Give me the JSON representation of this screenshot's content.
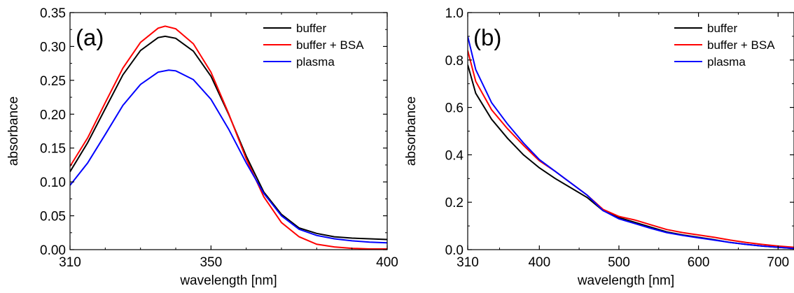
{
  "chart_data": [
    {
      "type": "line",
      "panel_label": "(a)",
      "xlabel": "wavelength [nm]",
      "ylabel": "absorbance",
      "xlim": [
        310,
        400
      ],
      "ylim": [
        0,
        0.35
      ],
      "x_ticks": [
        310,
        350,
        400
      ],
      "x_minor_ticks": [
        320,
        330,
        340,
        360,
        370,
        380,
        390
      ],
      "y_ticks": [
        0,
        0.05,
        0.1,
        0.15,
        0.2,
        0.25,
        0.3,
        0.35
      ],
      "x_tick_labels": [
        "310",
        "350",
        "400"
      ],
      "y_tick_labels": [
        "0.00",
        "0.05",
        "0.10",
        "0.15",
        "0.20",
        "0.25",
        "0.30",
        "0.35"
      ],
      "grid": false,
      "legend_position": "top-right",
      "series": [
        {
          "name": "buffer",
          "color": "#000000",
          "x": [
            310,
            315,
            320,
            325,
            330,
            335,
            337,
            340,
            345,
            350,
            355,
            360,
            365,
            370,
            375,
            380,
            385,
            390,
            395,
            400
          ],
          "y": [
            0.115,
            0.158,
            0.208,
            0.258,
            0.294,
            0.313,
            0.315,
            0.312,
            0.293,
            0.256,
            0.2,
            0.138,
            0.085,
            0.052,
            0.032,
            0.024,
            0.019,
            0.017,
            0.016,
            0.015
          ]
        },
        {
          "name": "buffer + BSA",
          "color": "#ff0000",
          "x": [
            310,
            315,
            320,
            325,
            330,
            335,
            337,
            340,
            345,
            350,
            355,
            360,
            365,
            370,
            375,
            380,
            385,
            390,
            395,
            400
          ],
          "y": [
            0.123,
            0.165,
            0.217,
            0.268,
            0.306,
            0.327,
            0.33,
            0.326,
            0.304,
            0.262,
            0.201,
            0.134,
            0.078,
            0.04,
            0.019,
            0.008,
            0.004,
            0.002,
            0.001,
            0.001
          ]
        },
        {
          "name": "plasma",
          "color": "#0000ff",
          "x": [
            310,
            315,
            320,
            325,
            330,
            335,
            338,
            340,
            345,
            350,
            355,
            360,
            365,
            370,
            375,
            380,
            385,
            390,
            395,
            400
          ],
          "y": [
            0.095,
            0.128,
            0.17,
            0.213,
            0.244,
            0.262,
            0.265,
            0.264,
            0.251,
            0.222,
            0.178,
            0.128,
            0.083,
            0.05,
            0.03,
            0.021,
            0.016,
            0.013,
            0.011,
            0.01
          ]
        }
      ]
    },
    {
      "type": "line",
      "panel_label": "(b)",
      "xlabel": "wavelength [nm]",
      "ylabel": "absorbance",
      "xlim": [
        310,
        720
      ],
      "ylim": [
        0,
        1.0
      ],
      "x_ticks": [
        310,
        400,
        500,
        600,
        700
      ],
      "x_minor_ticks": [
        350,
        450,
        550,
        650
      ],
      "y_ticks": [
        0,
        0.2,
        0.4,
        0.6,
        0.8,
        1.0
      ],
      "x_tick_labels": [
        "310",
        "400",
        "500",
        "600",
        "700"
      ],
      "y_tick_labels": [
        "0.0",
        "0.2",
        "0.4",
        "0.6",
        "0.8",
        "1.0"
      ],
      "grid": false,
      "legend_position": "top-right",
      "series": [
        {
          "name": "buffer",
          "color": "#000000",
          "x": [
            310,
            320,
            340,
            360,
            380,
            400,
            420,
            440,
            460,
            480,
            500,
            520,
            540,
            560,
            580,
            600,
            620,
            640,
            660,
            680,
            700,
            720
          ],
          "y": [
            0.78,
            0.66,
            0.55,
            0.47,
            0.4,
            0.345,
            0.3,
            0.26,
            0.22,
            0.165,
            0.135,
            0.115,
            0.095,
            0.075,
            0.062,
            0.052,
            0.042,
            0.03,
            0.022,
            0.015,
            0.01,
            0.005
          ]
        },
        {
          "name": "buffer + BSA",
          "color": "#ff0000",
          "x": [
            310,
            320,
            340,
            360,
            380,
            400,
            420,
            440,
            460,
            480,
            500,
            520,
            540,
            560,
            580,
            600,
            620,
            640,
            660,
            680,
            700,
            720
          ],
          "y": [
            0.84,
            0.71,
            0.59,
            0.51,
            0.44,
            0.375,
            0.33,
            0.28,
            0.23,
            0.17,
            0.14,
            0.125,
            0.105,
            0.085,
            0.072,
            0.062,
            0.052,
            0.04,
            0.03,
            0.022,
            0.015,
            0.01
          ]
        },
        {
          "name": "plasma",
          "color": "#0000ff",
          "x": [
            310,
            320,
            340,
            360,
            380,
            400,
            420,
            440,
            460,
            480,
            500,
            520,
            540,
            560,
            580,
            600,
            620,
            640,
            660,
            680,
            700,
            720
          ],
          "y": [
            0.9,
            0.76,
            0.62,
            0.53,
            0.45,
            0.38,
            0.33,
            0.28,
            0.23,
            0.165,
            0.13,
            0.11,
            0.09,
            0.072,
            0.06,
            0.05,
            0.04,
            0.03,
            0.022,
            0.015,
            0.01,
            0.005
          ]
        }
      ]
    }
  ]
}
